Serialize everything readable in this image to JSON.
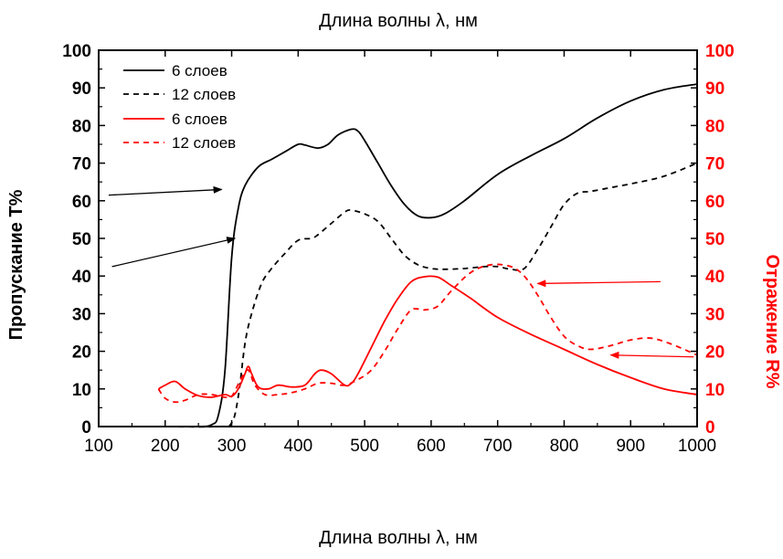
{
  "chart_data": {
    "type": "line",
    "xlabel_top": "Длина волны λ, нм",
    "xlabel_bottom": "Длина волны λ, нм",
    "ylabel_left": "Пропускание Т%",
    "ylabel_right": "Отражение R%",
    "xlim": [
      100,
      1000
    ],
    "ylim": [
      0,
      100
    ],
    "x_ticks": [
      100,
      200,
      300,
      400,
      500,
      600,
      700,
      800,
      900,
      1000
    ],
    "y_ticks": [
      0,
      10,
      20,
      30,
      40,
      50,
      60,
      70,
      80,
      90,
      100
    ],
    "colors": {
      "transmission": "#000000",
      "reflection": "#ff0000"
    },
    "legend_position": "top-left",
    "series": [
      {
        "name": "6 слоев",
        "axis": "left",
        "color": "#000000",
        "dash": "solid",
        "points": [
          [
            190,
            0
          ],
          [
            250,
            0
          ],
          [
            270,
            0.5
          ],
          [
            280,
            3
          ],
          [
            290,
            15
          ],
          [
            300,
            45
          ],
          [
            310,
            58
          ],
          [
            320,
            64
          ],
          [
            340,
            69
          ],
          [
            360,
            71
          ],
          [
            380,
            73
          ],
          [
            400,
            75
          ],
          [
            410,
            74.8
          ],
          [
            430,
            74
          ],
          [
            445,
            75
          ],
          [
            460,
            77.5
          ],
          [
            480,
            79
          ],
          [
            490,
            78.5
          ],
          [
            500,
            76
          ],
          [
            520,
            70
          ],
          [
            540,
            64
          ],
          [
            560,
            59
          ],
          [
            580,
            56
          ],
          [
            600,
            55.5
          ],
          [
            620,
            56.5
          ],
          [
            650,
            60
          ],
          [
            700,
            67
          ],
          [
            750,
            72
          ],
          [
            800,
            76.5
          ],
          [
            850,
            82
          ],
          [
            900,
            86.5
          ],
          [
            950,
            89.5
          ],
          [
            1000,
            91
          ]
        ]
      },
      {
        "name": "12 слоев",
        "axis": "left",
        "color": "#000000",
        "dash": "dashed",
        "points": [
          [
            190,
            0
          ],
          [
            280,
            0
          ],
          [
            300,
            1
          ],
          [
            310,
            8
          ],
          [
            320,
            22
          ],
          [
            330,
            30
          ],
          [
            345,
            38
          ],
          [
            360,
            42
          ],
          [
            380,
            46
          ],
          [
            400,
            49.5
          ],
          [
            420,
            50
          ],
          [
            430,
            51
          ],
          [
            450,
            54
          ],
          [
            470,
            57
          ],
          [
            480,
            57.5
          ],
          [
            500,
            56.5
          ],
          [
            520,
            54.5
          ],
          [
            540,
            50
          ],
          [
            560,
            45.5
          ],
          [
            580,
            43
          ],
          [
            600,
            42
          ],
          [
            620,
            41.8
          ],
          [
            650,
            42
          ],
          [
            680,
            42.5
          ],
          [
            700,
            42.5
          ],
          [
            720,
            41.8
          ],
          [
            740,
            42
          ],
          [
            760,
            47
          ],
          [
            780,
            53
          ],
          [
            800,
            59
          ],
          [
            820,
            62
          ],
          [
            840,
            62.5
          ],
          [
            870,
            63.5
          ],
          [
            900,
            64.5
          ],
          [
            950,
            66.5
          ],
          [
            1000,
            70
          ]
        ]
      },
      {
        "name": "6 слоев",
        "axis": "right",
        "color": "#ff0000",
        "dash": "solid",
        "points": [
          [
            190,
            10
          ],
          [
            200,
            11
          ],
          [
            215,
            12
          ],
          [
            230,
            10
          ],
          [
            250,
            8.2
          ],
          [
            270,
            7.8
          ],
          [
            290,
            8.5
          ],
          [
            300,
            8
          ],
          [
            310,
            10
          ],
          [
            320,
            14
          ],
          [
            325,
            16
          ],
          [
            330,
            14
          ],
          [
            340,
            10.5
          ],
          [
            355,
            10
          ],
          [
            370,
            11
          ],
          [
            390,
            10.5
          ],
          [
            410,
            11
          ],
          [
            425,
            14
          ],
          [
            435,
            15
          ],
          [
            450,
            14
          ],
          [
            470,
            11
          ],
          [
            480,
            11.5
          ],
          [
            490,
            14
          ],
          [
            510,
            21
          ],
          [
            530,
            28
          ],
          [
            550,
            34
          ],
          [
            570,
            38.5
          ],
          [
            590,
            39.8
          ],
          [
            610,
            39.7
          ],
          [
            630,
            37.5
          ],
          [
            660,
            34
          ],
          [
            700,
            29
          ],
          [
            750,
            24.5
          ],
          [
            800,
            20.5
          ],
          [
            850,
            16.5
          ],
          [
            900,
            13
          ],
          [
            950,
            10
          ],
          [
            1000,
            8.5
          ]
        ]
      },
      {
        "name": "12 слоев",
        "axis": "right",
        "color": "#ff0000",
        "dash": "dashed",
        "points": [
          [
            190,
            10
          ],
          [
            200,
            7.5
          ],
          [
            215,
            6.5
          ],
          [
            230,
            7
          ],
          [
            250,
            8.5
          ],
          [
            270,
            8.5
          ],
          [
            290,
            7.8
          ],
          [
            300,
            8
          ],
          [
            315,
            13
          ],
          [
            325,
            15
          ],
          [
            335,
            11
          ],
          [
            350,
            8.5
          ],
          [
            370,
            8.5
          ],
          [
            390,
            9
          ],
          [
            410,
            10
          ],
          [
            430,
            11.5
          ],
          [
            450,
            11.5
          ],
          [
            470,
            11
          ],
          [
            490,
            12.5
          ],
          [
            510,
            15
          ],
          [
            530,
            20
          ],
          [
            550,
            26
          ],
          [
            570,
            31
          ],
          [
            590,
            31
          ],
          [
            610,
            32
          ],
          [
            630,
            36
          ],
          [
            660,
            41
          ],
          [
            690,
            43
          ],
          [
            720,
            42.5
          ],
          [
            740,
            40
          ],
          [
            760,
            35
          ],
          [
            780,
            29
          ],
          [
            800,
            24
          ],
          [
            820,
            21.5
          ],
          [
            840,
            20.5
          ],
          [
            870,
            21.5
          ],
          [
            900,
            23
          ],
          [
            930,
            23.5
          ],
          [
            960,
            22
          ],
          [
            1000,
            19
          ]
        ]
      }
    ],
    "annotations": [
      {
        "type": "arrow",
        "color": "#000000",
        "from": [
          115,
          61.5
        ],
        "to": [
          285,
          63
        ]
      },
      {
        "type": "arrow",
        "color": "#000000",
        "from": [
          120,
          42.5
        ],
        "to": [
          305,
          50
        ]
      },
      {
        "type": "arrow",
        "color": "#ff0000",
        "from": [
          945,
          38.5
        ],
        "to": [
          760,
          38
        ]
      },
      {
        "type": "arrow",
        "color": "#ff0000",
        "from": [
          995,
          18.5
        ],
        "to": [
          870,
          19
        ]
      }
    ]
  }
}
